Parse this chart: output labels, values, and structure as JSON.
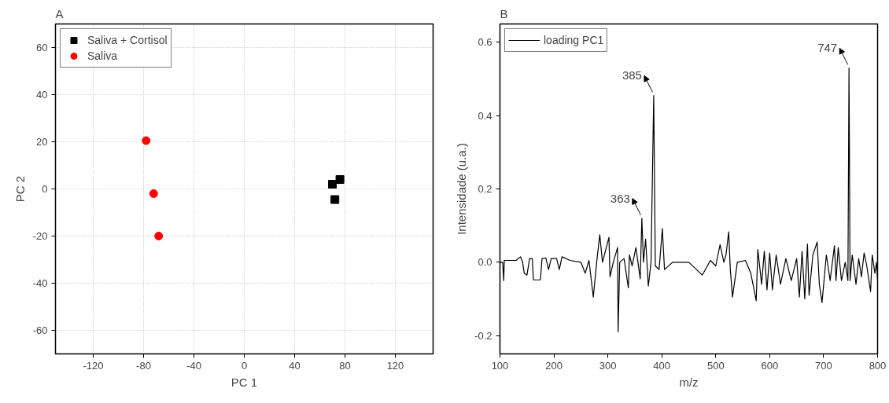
{
  "chart_data": [
    {
      "type": "scatter",
      "title": "A",
      "xlabel": "PC 1",
      "ylabel": "PC 2",
      "xlim": [
        -150,
        150
      ],
      "ylim": [
        -70,
        70
      ],
      "xticks": [
        -120,
        -80,
        -40,
        0,
        40,
        80,
        120
      ],
      "yticks": [
        -60,
        -40,
        -20,
        0,
        20,
        40,
        60
      ],
      "grid": true,
      "legend": "top left",
      "series": [
        {
          "name": "Saliva + Cortisol",
          "color": "#000000",
          "marker": "square",
          "x": [
            70,
            76,
            72
          ],
          "values": [
            2,
            4,
            -4.5
          ]
        },
        {
          "name": "Saliva",
          "color": "#ff0000",
          "marker": "circle",
          "x": [
            -78,
            -72,
            -68
          ],
          "values": [
            20.5,
            -2,
            -20
          ]
        }
      ]
    },
    {
      "type": "line",
      "title": "B",
      "xlabel": "m/z",
      "ylabel": "Intensidade (u.a.)",
      "xlim": [
        100,
        800
      ],
      "ylim": [
        -0.25,
        0.65
      ],
      "xticks": [
        100,
        200,
        300,
        400,
        500,
        600,
        700,
        800
      ],
      "yticks": [
        -0.2,
        {
          "value": 0,
          "label": "0.0"
        },
        0.2,
        0.4,
        0.6
      ],
      "grid": false,
      "legend": "top left",
      "line_style": "solid",
      "marker": "none",
      "annotations": [
        {
          "text": "363",
          "x": 363,
          "y": 0.12
        },
        {
          "text": "385",
          "x": 385,
          "y": 0.455
        },
        {
          "text": "747",
          "x": 747,
          "y": 0.53
        }
      ],
      "series": [
        {
          "name": "loading PC1",
          "color": "#000000",
          "x": [
            100,
            105,
            107,
            108,
            130,
            138,
            142,
            145,
            150,
            155,
            160,
            162,
            175,
            178,
            185,
            190,
            195,
            205,
            210,
            215,
            230,
            250,
            258,
            265,
            273,
            280,
            285,
            290,
            302,
            304,
            310,
            318,
            319,
            322,
            330,
            338,
            340,
            345,
            352,
            360,
            363,
            366,
            370,
            375,
            380,
            385,
            388,
            395,
            401,
            405,
            420,
            450,
            475,
            490,
            500,
            508,
            515,
            519,
            524,
            527,
            531,
            540,
            555,
            565,
            575,
            578,
            585,
            590,
            595,
            600,
            605,
            612,
            620,
            630,
            640,
            650,
            655,
            660,
            665,
            670,
            673,
            680,
            688,
            692,
            697,
            705,
            712,
            720,
            723,
            727,
            733,
            740,
            745,
            747,
            749,
            753,
            760,
            765,
            770,
            775,
            780,
            787,
            790,
            795,
            798,
            800
          ],
          "values": [
            0.0,
            0.0,
            -0.05,
            0.005,
            0.005,
            0.015,
            0.0,
            -0.03,
            -0.035,
            0.01,
            0.01,
            -0.048,
            -0.048,
            0.01,
            0.012,
            -0.02,
            0.01,
            0.01,
            -0.02,
            0.015,
            0.005,
            0.0,
            -0.03,
            0.005,
            -0.095,
            0.01,
            0.075,
            0.0,
            0.068,
            -0.04,
            0.0,
            0.04,
            -0.19,
            0.0,
            0.01,
            -0.07,
            0.02,
            -0.01,
            0.04,
            -0.045,
            0.12,
            0.0,
            0.063,
            -0.065,
            0.0,
            0.455,
            -0.01,
            -0.02,
            0.092,
            -0.02,
            0.0,
            0.0,
            -0.035,
            0.005,
            -0.01,
            0.048,
            0.0,
            0.02,
            0.083,
            -0.02,
            -0.095,
            0.0,
            0.005,
            -0.03,
            -0.105,
            0.035,
            -0.06,
            0.03,
            -0.075,
            0.025,
            -0.075,
            0.02,
            -0.06,
            0.01,
            -0.05,
            0.01,
            -0.095,
            0.03,
            -0.1,
            0.05,
            -0.09,
            0.02,
            0.055,
            -0.06,
            -0.11,
            0.02,
            -0.05,
            0.045,
            -0.05,
            0.04,
            -0.05,
            0.0,
            -0.05,
            0.53,
            -0.05,
            0.02,
            -0.06,
            0.01,
            -0.04,
            0.025,
            -0.01,
            -0.08,
            0.02,
            -0.03,
            0.0,
            -0.05
          ]
        }
      ]
    }
  ]
}
